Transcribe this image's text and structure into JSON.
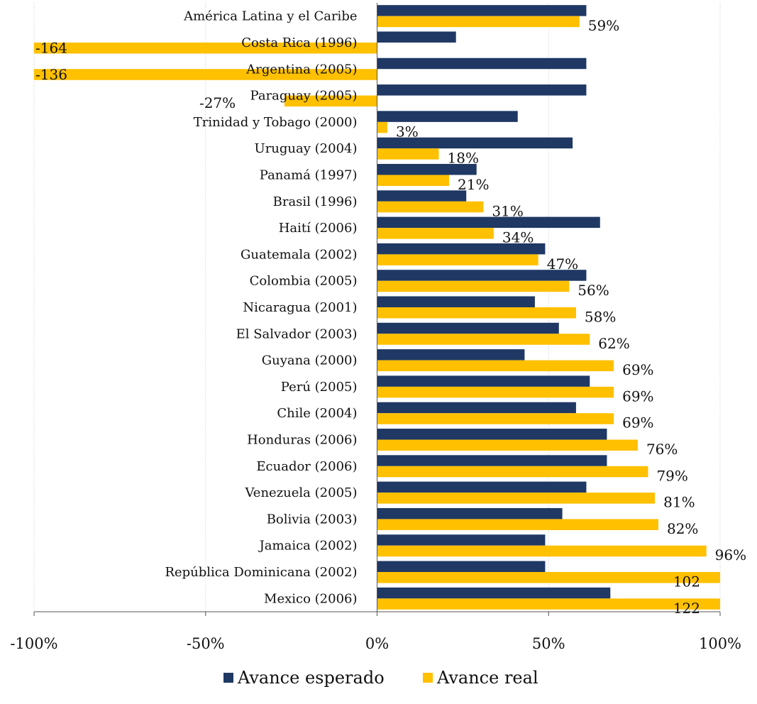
{
  "chart_data": {
    "type": "bar",
    "orientation": "horizontal",
    "categories": [
      "América Latina y el Caribe",
      "Costa Rica (1996)",
      "Argentina (2005)",
      "Paraguay (2005)",
      "Trinidad y Tobago (2000)",
      "Uruguay (2004)",
      "Panamá (1997)",
      "Brasil (1996)",
      "Haití (2006)",
      "Guatemala (2002)",
      "Colombia (2005)",
      "Nicaragua (2001)",
      "El Salvador (2003)",
      "Guyana (2000)",
      "Perú (2005)",
      "Chile (2004)",
      "Honduras (2006)",
      "Ecuador (2006)",
      "Venezuela (2005)",
      "Bolivia (2003)",
      "Jamaica (2002)",
      "República Dominicana (2002)",
      "Mexico (2006)"
    ],
    "series": [
      {
        "name": "Avance esperado",
        "color": "#1f3864",
        "values": [
          61,
          23,
          61,
          61,
          41,
          57,
          29,
          26,
          65,
          49,
          61,
          46,
          53,
          43,
          62,
          58,
          67,
          67,
          61,
          54,
          49,
          49,
          68
        ]
      },
      {
        "name": "Avance real",
        "color": "#ffc000",
        "values": [
          59,
          -164,
          -136,
          -27,
          3,
          18,
          21,
          31,
          34,
          47,
          56,
          58,
          62,
          69,
          69,
          69,
          76,
          79,
          81,
          82,
          96,
          102,
          122
        ],
        "data_labels": [
          "59%",
          "-164",
          "-136",
          "-27%",
          "3%",
          "18%",
          "21%",
          "31%",
          "34%",
          "47%",
          "56%",
          "58%",
          "62%",
          "69%",
          "69%",
          "69%",
          "76%",
          "79%",
          "81%",
          "82%",
          "96%",
          "102",
          "122"
        ]
      }
    ],
    "xlim": [
      -100,
      100
    ],
    "xticks": [
      -100,
      -50,
      0,
      50,
      100
    ],
    "xtick_labels": [
      "-100%",
      "-50%",
      "0%",
      "50%",
      "100%"
    ],
    "grid": true,
    "legend_position": "bottom",
    "title": "",
    "xlabel": "",
    "ylabel": ""
  }
}
